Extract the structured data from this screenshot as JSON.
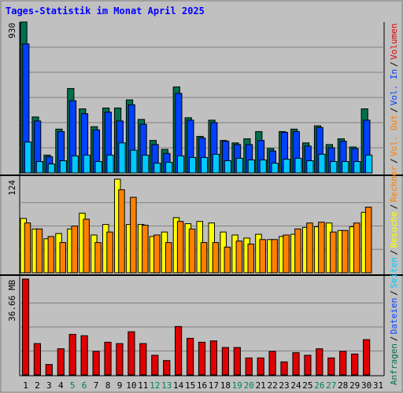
{
  "chart_data": {
    "type": "bar",
    "title": "Tages-Statistik im Monat April 2025",
    "categories": [
      "1",
      "2",
      "3",
      "4",
      "5",
      "6",
      "7",
      "8",
      "9",
      "10",
      "11",
      "12",
      "13",
      "14",
      "15",
      "16",
      "17",
      "18",
      "19",
      "20",
      "21",
      "22",
      "23",
      "24",
      "25",
      "26",
      "27",
      "28",
      "29",
      "30",
      "31"
    ],
    "weekend_days": [
      "5",
      "6",
      "12",
      "13",
      "19",
      "20",
      "26",
      "27"
    ],
    "panels": [
      {
        "id": "top",
        "max_label": "930",
        "max_value": 930,
        "series": [
          {
            "name": "Anfragen",
            "color": "#006f4f",
            "values": [
              930,
              345,
              110,
              270,
              520,
              395,
              285,
              400,
              400,
              450,
              330,
              200,
              145,
              530,
              340,
              225,
              325,
              200,
              185,
              210,
              255,
              150,
              255,
              270,
              185,
              290,
              175,
              210,
              160,
              395,
              null
            ]
          },
          {
            "name": "Dateien",
            "color": "#0040ff",
            "values": [
              795,
              320,
              100,
              255,
              445,
              365,
              265,
              375,
              320,
              420,
              300,
              175,
              120,
              490,
              325,
              215,
              310,
              195,
              175,
              175,
              200,
              135,
              250,
              255,
              165,
              280,
              155,
              195,
              150,
              325,
              null
            ]
          },
          {
            "name": "Seiten",
            "color": "#00c8ff",
            "values": [
              190,
              70,
              55,
              75,
              105,
              110,
              70,
              110,
              185,
              140,
              110,
              60,
              65,
              105,
              95,
              95,
              115,
              75,
              90,
              80,
              80,
              60,
              85,
              90,
              75,
              115,
              70,
              70,
              70,
              110,
              null
            ]
          }
        ]
      },
      {
        "id": "middle",
        "max_label": "124",
        "max_value": 124,
        "series": [
          {
            "name": "Besuche",
            "color": "#ffff00",
            "values": [
              72,
              58,
              45,
              52,
              58,
              79,
              50,
              64,
              124,
              64,
              64,
              48,
              54,
              73,
              65,
              68,
              66,
              54,
              50,
              46,
              51,
              44,
              48,
              51,
              60,
              61,
              66,
              56,
              61,
              80,
              null
            ]
          },
          {
            "name": "Rechner",
            "color": "#ff8000",
            "values": [
              66,
              58,
              48,
              40,
              62,
              71,
              40,
              54,
              110,
              100,
              63,
              50,
              40,
              68,
              58,
              40,
              40,
              34,
              42,
              38,
              44,
              44,
              50,
              58,
              66,
              67,
              54,
              56,
              66,
              87,
              null
            ]
          }
        ]
      },
      {
        "id": "bottom",
        "max_label": "36.66 MB",
        "max_value": 36.66,
        "series": [
          {
            "name": "Volumen",
            "color": "#e00000",
            "values": [
              36.66,
              12.0,
              4.0,
              10.0,
              15.5,
              15.0,
              9.0,
              12.5,
              12.0,
              16.5,
              12.0,
              7.5,
              5.5,
              18.5,
              14.0,
              12.5,
              13.0,
              10.5,
              10.5,
              6.5,
              6.5,
              9.0,
              5.0,
              8.5,
              7.5,
              10.0,
              6.5,
              9.0,
              8.0,
              13.5,
              null
            ]
          }
        ]
      }
    ],
    "right_labels": [
      {
        "panel": "top",
        "items": [
          {
            "text": "Anfragen",
            "color": "#006f4f"
          },
          {
            "text": "Dateien",
            "color": "#0040ff"
          },
          {
            "text": "Seiten",
            "color": "#00c8ff"
          },
          {
            "text": "Besuche",
            "color": "#ffff00"
          },
          {
            "text": "Rechner",
            "color": "#ff8000"
          },
          {
            "text": "Vol. Out",
            "color": "#ff8000"
          },
          {
            "text": "Vol. In",
            "color": "#0040ff"
          },
          {
            "text": "Volumen",
            "color": "#e00000"
          }
        ]
      }
    ],
    "grid": true,
    "colors": {
      "background": "#c0c0c0",
      "title": "#0000ff",
      "weekday_label": "#000000",
      "weekend_label": "#00805f",
      "separator": "#000000"
    }
  }
}
